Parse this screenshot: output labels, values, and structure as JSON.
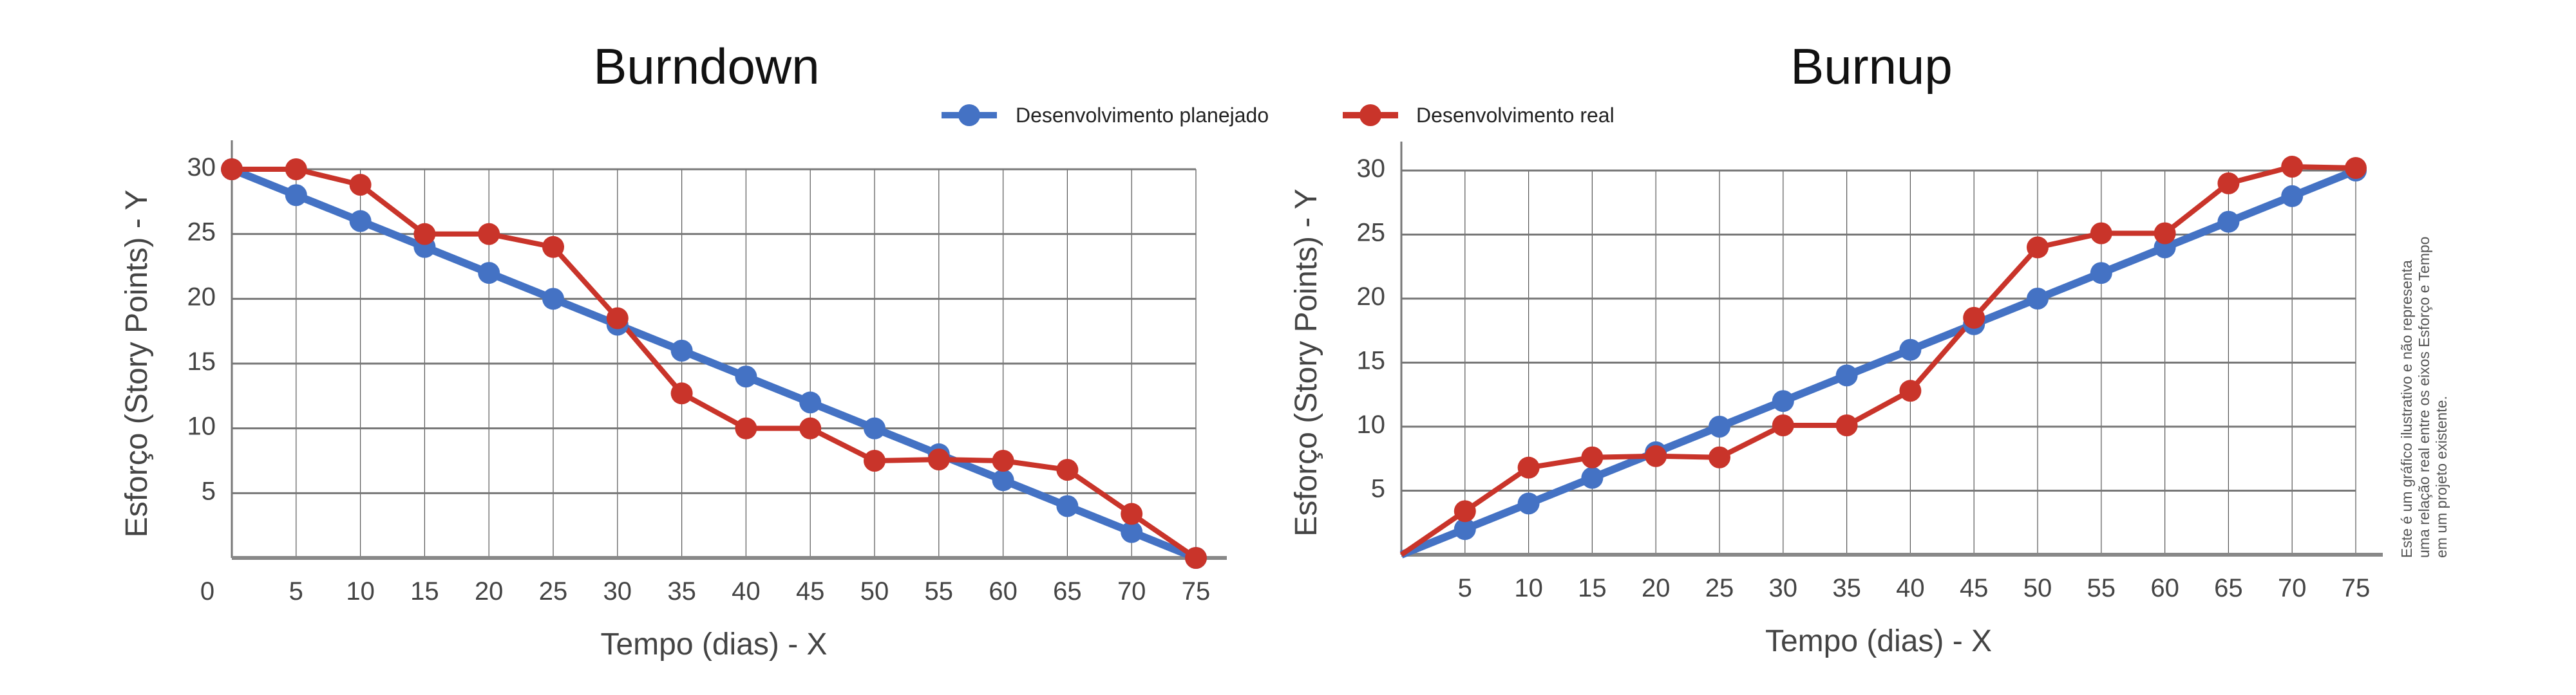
{
  "legend": {
    "planned": "Desenvolvimento planejado",
    "real": "Desenvolvimento real"
  },
  "colors": {
    "planned": "#4472c4",
    "real": "#c9342a",
    "grid": "#777777"
  },
  "note": [
    "Este é um gráfico ilustrativo e não representa",
    "uma relação real entre os eixos Esforço e Tempo",
    "em um projeto existente."
  ],
  "chart_data": [
    {
      "type": "line",
      "title": "Burndown",
      "xlabel": "Tempo (dias) - X",
      "ylabel": "Esforço (Story Points) - Y",
      "xlim": [
        0,
        75
      ],
      "ylim": [
        0,
        30
      ],
      "xticks": [
        0,
        5,
        10,
        15,
        20,
        25,
        30,
        35,
        40,
        45,
        50,
        55,
        60,
        65,
        70,
        75
      ],
      "yticks": [
        5,
        10,
        15,
        20,
        25,
        30
      ],
      "grid": true,
      "legend": "top-center",
      "x": [
        0,
        5,
        10,
        15,
        20,
        25,
        30,
        35,
        40,
        45,
        50,
        55,
        60,
        65,
        70,
        75
      ],
      "series": [
        {
          "name": "Desenvolvimento planejado",
          "values": [
            30,
            28,
            26,
            24,
            22,
            20,
            18,
            16,
            14,
            12,
            10,
            8,
            6,
            4,
            2,
            0
          ]
        },
        {
          "name": "Desenvolvimento real",
          "values": [
            30,
            30,
            28.8,
            25,
            25,
            24,
            18.5,
            12.7,
            10,
            10,
            7.5,
            7.6,
            7.5,
            6.8,
            3.4,
            0
          ]
        }
      ]
    },
    {
      "type": "line",
      "title": "Burnup",
      "xlabel": "Tempo (dias) - X",
      "ylabel": "Esforço (Story Points) - Y",
      "xlim": [
        0,
        75
      ],
      "ylim": [
        0,
        30
      ],
      "xticks": [
        5,
        10,
        15,
        20,
        25,
        30,
        35,
        40,
        45,
        50,
        55,
        60,
        65,
        70,
        75
      ],
      "yticks": [
        5,
        10,
        15,
        20,
        25,
        30
      ],
      "grid": true,
      "legend": "top-center",
      "x": [
        0,
        5,
        10,
        15,
        20,
        25,
        30,
        35,
        40,
        45,
        50,
        55,
        60,
        65,
        70,
        75
      ],
      "series": [
        {
          "name": "Desenvolvimento planejado",
          "values": [
            0,
            2,
            4,
            6,
            8,
            10,
            12,
            14,
            16,
            18,
            20,
            22,
            24,
            26,
            28,
            30
          ]
        },
        {
          "name": "Desenvolvimento real",
          "values": [
            0,
            3.4,
            6.8,
            7.6,
            7.7,
            7.6,
            10.1,
            10.1,
            12.8,
            18.5,
            24,
            25.1,
            25.1,
            29,
            30.3,
            30.2
          ]
        }
      ]
    }
  ]
}
